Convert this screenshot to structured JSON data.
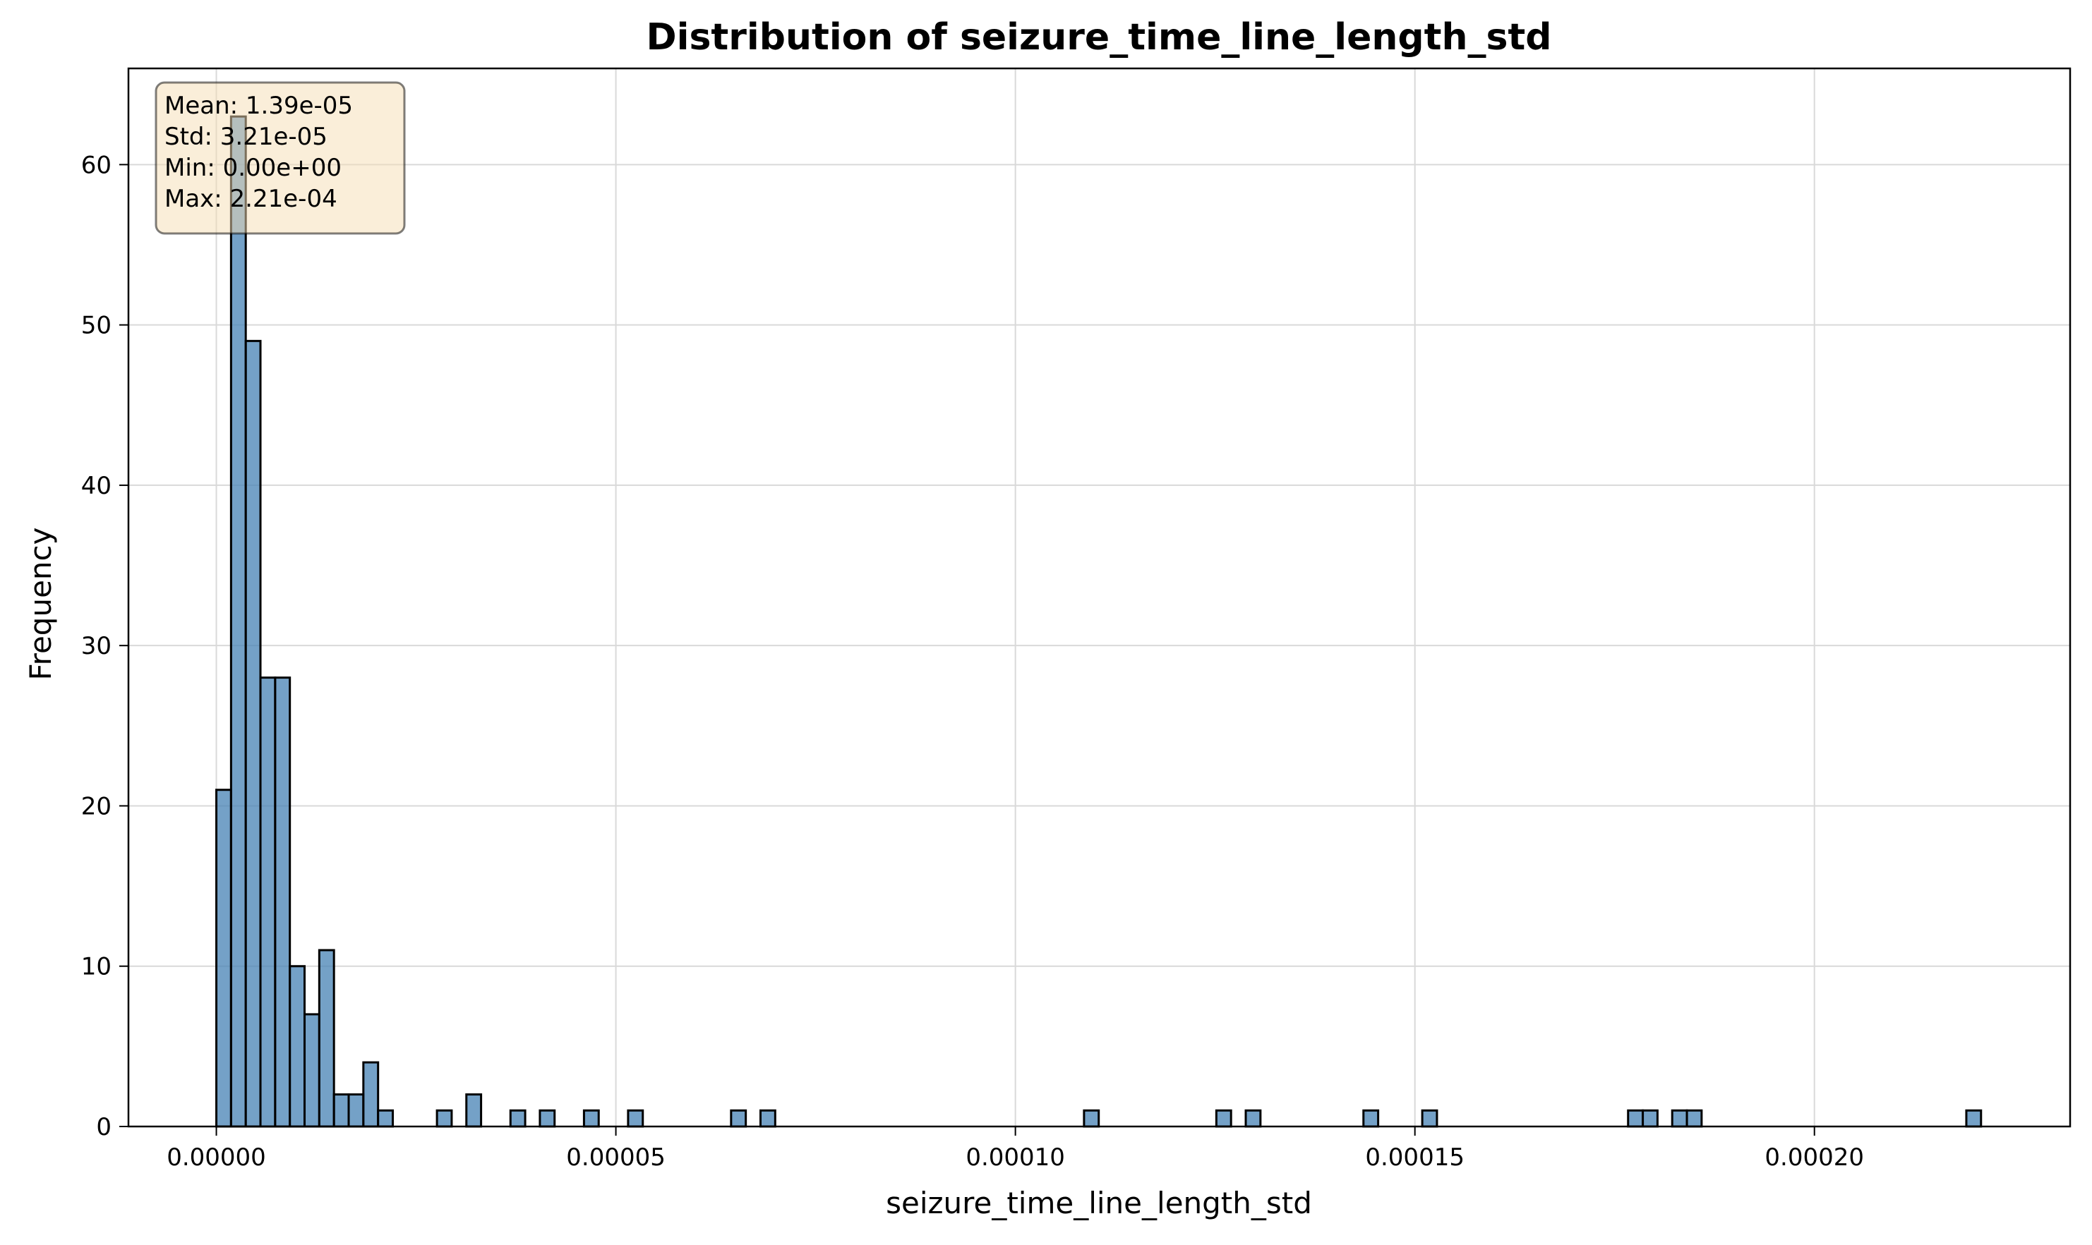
{
  "chart_data": {
    "type": "bar",
    "title": "Distribution of seizure_time_line_length_std",
    "xlabel": "seizure_time_line_length_std",
    "ylabel": "Frequency",
    "xlim": [
      -1.1e-05,
      0.000232
    ],
    "ylim": [
      0,
      66
    ],
    "grid": true,
    "bar_color": "#4682b4",
    "edge_color": "#000000",
    "bin_width": 1.84e-06,
    "x_ticks": [
      {
        "value": 0.0,
        "label": "0.00000"
      },
      {
        "value": 5e-05,
        "label": "0.00005"
      },
      {
        "value": 0.0001,
        "label": "0.00010"
      },
      {
        "value": 0.00015,
        "label": "0.00015"
      },
      {
        "value": 0.0002,
        "label": "0.00020"
      }
    ],
    "y_ticks": [
      {
        "value": 0,
        "label": "0"
      },
      {
        "value": 10,
        "label": "10"
      },
      {
        "value": 20,
        "label": "20"
      },
      {
        "value": 30,
        "label": "30"
      },
      {
        "value": 40,
        "label": "40"
      },
      {
        "value": 50,
        "label": "50"
      },
      {
        "value": 60,
        "label": "60"
      }
    ],
    "bins": [
      {
        "x": 0.0,
        "count": 21
      },
      {
        "x": 1.84e-06,
        "count": 63
      },
      {
        "x": 3.68e-06,
        "count": 49
      },
      {
        "x": 5.52e-06,
        "count": 28
      },
      {
        "x": 7.36e-06,
        "count": 28
      },
      {
        "x": 9.2e-06,
        "count": 10
      },
      {
        "x": 1.104e-05,
        "count": 7
      },
      {
        "x": 1.288e-05,
        "count": 11
      },
      {
        "x": 1.472e-05,
        "count": 2
      },
      {
        "x": 1.656e-05,
        "count": 2
      },
      {
        "x": 1.84e-05,
        "count": 4
      },
      {
        "x": 2.024e-05,
        "count": 1
      },
      {
        "x": 2.761e-05,
        "count": 1
      },
      {
        "x": 3.129e-05,
        "count": 2
      },
      {
        "x": 3.681e-05,
        "count": 1
      },
      {
        "x": 4.049e-05,
        "count": 1
      },
      {
        "x": 4.601e-05,
        "count": 1
      },
      {
        "x": 5.153e-05,
        "count": 1
      },
      {
        "x": 6.442e-05,
        "count": 1
      },
      {
        "x": 6.81e-05,
        "count": 1
      },
      {
        "x": 0.00010859,
        "count": 1
      },
      {
        "x": 0.00012515,
        "count": 1
      },
      {
        "x": 0.00012883,
        "count": 1
      },
      {
        "x": 0.00014356,
        "count": 1
      },
      {
        "x": 0.00015092,
        "count": 1
      },
      {
        "x": 0.00017668,
        "count": 1
      },
      {
        "x": 0.00017852,
        "count": 1
      },
      {
        "x": 0.0001822,
        "count": 1
      },
      {
        "x": 0.00018404,
        "count": 1
      },
      {
        "x": 0.00021901,
        "count": 1
      }
    ],
    "stats_box": {
      "lines": [
        "Mean: 1.39e-05",
        "Std: 3.21e-05",
        "Min: 0.00e+00",
        "Max: 2.21e-04"
      ],
      "background": "#f5deb3",
      "placement": "top-left"
    }
  }
}
